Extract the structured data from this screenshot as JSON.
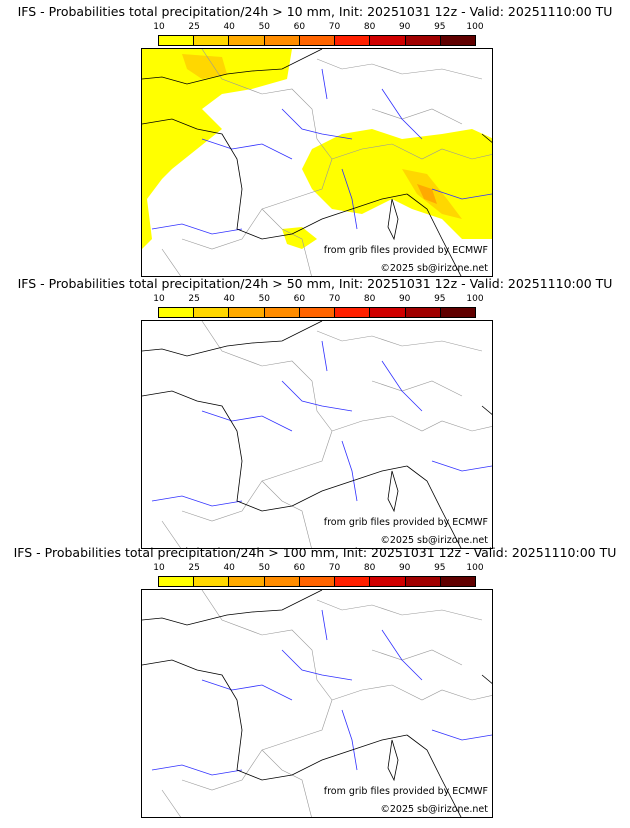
{
  "colorbar": {
    "ticks": [
      "10",
      "25",
      "40",
      "50",
      "60",
      "70",
      "80",
      "90",
      "95",
      "100"
    ],
    "colors": [
      "#ffff00",
      "#ffd700",
      "#ffaa00",
      "#ff8c00",
      "#ff6400",
      "#ff2000",
      "#d00000",
      "#a00000",
      "#600000"
    ]
  },
  "panels": [
    {
      "title": "IFS - Probabilities total precipitation/24h > 10 mm, Init: 20251031 12z - Valid: 20251110:00 TU"
    },
    {
      "title": "IFS - Probabilities total precipitation/24h > 50 mm, Init: 20251031 12z - Valid: 20251110:00 TU"
    },
    {
      "title": "IFS - Probabilities total precipitation/24h > 100 mm, Init: 20251031 12z - Valid: 20251110:00 TU"
    }
  ],
  "credits": {
    "source": "from grib files provided by ECMWF",
    "copyright": "©2025 sb@irizone.net"
  }
}
